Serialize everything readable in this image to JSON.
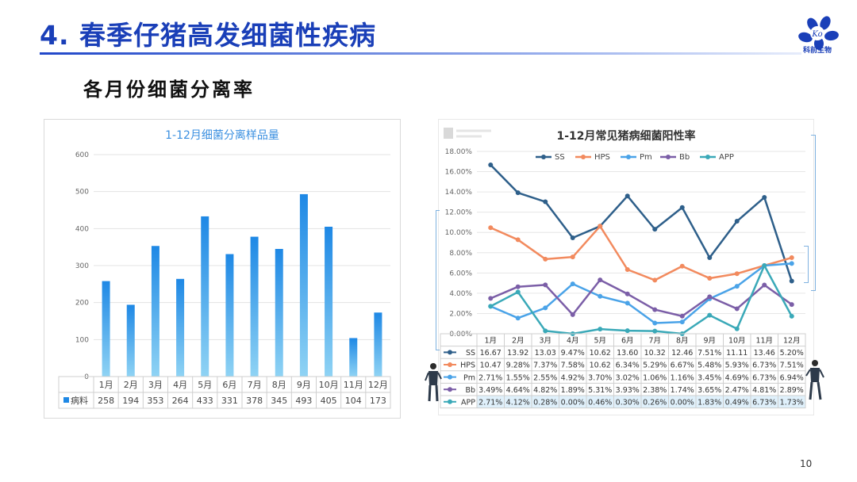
{
  "slide": {
    "title": "4. 春季仔猪高发细菌性疾病",
    "subtitle": "各月份细菌分离率",
    "logo_text": "科前生物",
    "logo_mark": "Ko",
    "page_number": "10",
    "title_color": "#1a3fb8"
  },
  "chart_data": [
    {
      "type": "bar",
      "title": "1-12月细菌分离样品量",
      "categories": [
        "1月",
        "2月",
        "3月",
        "4月",
        "5月",
        "6月",
        "7月",
        "8月",
        "9月",
        "10月",
        "11月",
        "12月"
      ],
      "series": [
        {
          "name": "病料",
          "values": [
            258,
            194,
            353,
            264,
            433,
            331,
            378,
            345,
            493,
            405,
            104,
            173
          ]
        }
      ],
      "ylim": [
        0,
        600
      ],
      "yticks": [
        "0",
        "100",
        "200",
        "300",
        "400",
        "500",
        "600"
      ],
      "grid": true,
      "legend": "data-table",
      "bar_color": "#1e88e5"
    },
    {
      "type": "line",
      "title": "1-12月常见猪病细菌阳性率",
      "categories": [
        "1月",
        "2月",
        "3月",
        "4月",
        "5月",
        "6月",
        "7月",
        "8月",
        "9月",
        "10月",
        "11月",
        "12月"
      ],
      "series": [
        {
          "name": "SS",
          "color": "#2e5f8a",
          "values": [
            16.67,
            13.92,
            13.03,
            9.47,
            10.62,
            13.6,
            10.32,
            12.46,
            7.51,
            11.11,
            13.46,
            5.2
          ],
          "labels": [
            "16.67",
            "13.92",
            "13.03",
            "9.47%",
            "10.62",
            "13.60",
            "10.32",
            "12.46",
            "7.51%",
            "11.11",
            "13.46",
            "5.20%"
          ]
        },
        {
          "name": "HPS",
          "color": "#f28a5e",
          "values": [
            10.47,
            9.28,
            7.37,
            7.58,
            10.62,
            6.34,
            5.29,
            6.67,
            5.48,
            5.93,
            6.73,
            7.51
          ],
          "labels": [
            "10.47",
            "9.28%",
            "7.37%",
            "7.58%",
            "10.62",
            "6.34%",
            "5.29%",
            "6.67%",
            "5.48%",
            "5.93%",
            "6.73%",
            "7.51%"
          ]
        },
        {
          "name": "Pm",
          "color": "#4aa3e8",
          "values": [
            2.71,
            1.55,
            2.55,
            4.92,
            3.7,
            3.02,
            1.06,
            1.16,
            3.45,
            4.69,
            6.73,
            6.94
          ],
          "labels": [
            "2.71%",
            "1.55%",
            "2.55%",
            "4.92%",
            "3.70%",
            "3.02%",
            "1.06%",
            "1.16%",
            "3.45%",
            "4.69%",
            "6.73%",
            "6.94%"
          ]
        },
        {
          "name": "Bb",
          "color": "#7b5ea7",
          "values": [
            3.49,
            4.64,
            4.82,
            1.89,
            5.31,
            3.93,
            2.38,
            1.74,
            3.65,
            2.47,
            4.81,
            2.89
          ],
          "labels": [
            "3.49%",
            "4.64%",
            "4.82%",
            "1.89%",
            "5.31%",
            "3.93%",
            "2.38%",
            "1.74%",
            "3.65%",
            "2.47%",
            "4.81%",
            "2.89%"
          ]
        },
        {
          "name": "APP",
          "color": "#3aa9b8",
          "values": [
            2.71,
            4.12,
            0.28,
            0.0,
            0.46,
            0.3,
            0.26,
            0.0,
            1.83,
            0.49,
            6.73,
            1.73
          ],
          "labels": [
            "2.71%",
            "4.12%",
            "0.28%",
            "0.00%",
            "0.46%",
            "0.30%",
            "0.26%",
            "0.00%",
            "1.83%",
            "0.49%",
            "6.73%",
            "1.73%"
          ]
        }
      ],
      "ylim": [
        0,
        18
      ],
      "yticks": [
        "0.00%",
        "2.00%",
        "4.00%",
        "6.00%",
        "8.00%",
        "10.00%",
        "12.00%",
        "14.00%",
        "16.00%",
        "18.00%"
      ],
      "grid": true,
      "legend": "top"
    }
  ]
}
